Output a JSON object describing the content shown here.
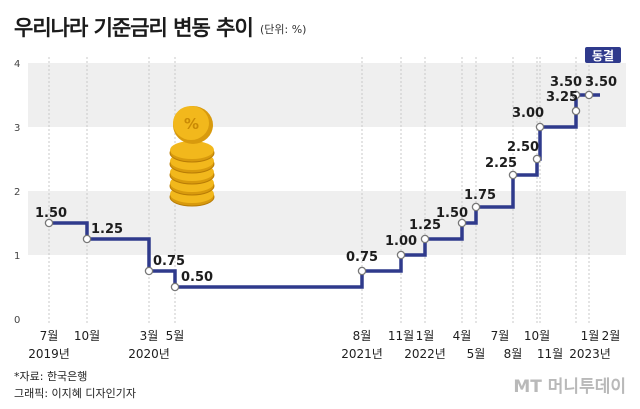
{
  "title": "우리나라 기준금리 변동 추이",
  "unit": "(단위: %)",
  "source": "*자료: 한국은행",
  "credit": "그래픽: 이지혜 디자인기자",
  "watermark": "MT 머니투데이",
  "highlight_label": "동결",
  "colors": {
    "line": "#2f3a8c",
    "highlight_bg": "#2f3a8c",
    "band": "#efefef",
    "coin": "#f2b81c"
  },
  "chart_data": {
    "type": "line",
    "step": true,
    "ylim": [
      0,
      4
    ],
    "yticks": [
      0,
      1,
      2,
      3,
      4
    ],
    "grid": "alternating horizontal bands",
    "title": "우리나라 기준금리 변동 추이",
    "xlabel": "",
    "ylabel": "",
    "series": [
      {
        "values": [
          1.5,
          1.25,
          0.75,
          0.5,
          0.75,
          1.0,
          1.25,
          1.5,
          1.75,
          2.25,
          2.5,
          3.0,
          3.25,
          3.5,
          3.5
        ]
      }
    ],
    "data_labels": [
      "1.50",
      "1.25",
      "0.75",
      "0.50",
      "0.75",
      "1.00",
      "1.25",
      "1.50",
      "1.75",
      "2.25",
      "2.50",
      "3.00",
      "3.25",
      "3.50",
      "3.50"
    ],
    "x_labels": [
      [
        "7월",
        "2019년"
      ],
      [
        "10월"
      ],
      [
        "3월",
        "2020년"
      ],
      [
        "5월"
      ],
      [
        "8월",
        "2021년"
      ],
      [
        "11월"
      ],
      [
        "1월",
        "2022년"
      ],
      [
        "4월"
      ],
      [
        "5월"
      ],
      [
        "7월"
      ],
      [
        "8월"
      ],
      [
        "10월"
      ],
      [
        "11월"
      ],
      [
        "1월",
        "2023년"
      ],
      [
        "2월"
      ]
    ]
  }
}
